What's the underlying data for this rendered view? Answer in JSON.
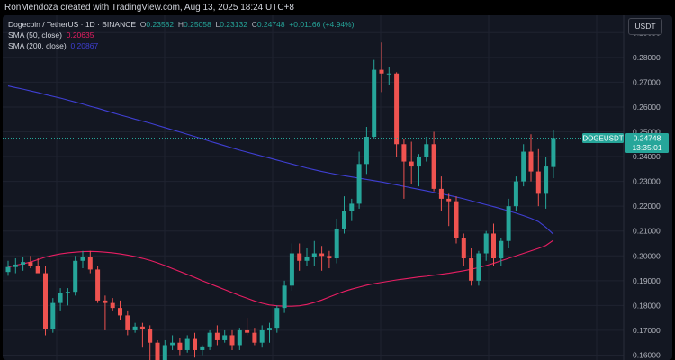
{
  "header": {
    "attribution": "RonMendoza created with TradingView.com, Aug 13, 2025 18:24 UTC+8"
  },
  "legend": {
    "symbol_line": "Dogecoin / TetherUS · 1D · BINANCE",
    "o_label": "O",
    "o_value": "0.23582",
    "h_label": "H",
    "h_value": "0.25058",
    "l_label": "L",
    "l_value": "0.23132",
    "c_label": "C",
    "c_value": "0.24748",
    "change": "+0.01166 (+4.94%)",
    "sma50_label": "SMA (50, close)",
    "sma50_value": "0.20635",
    "sma200_label": "SMA (200, close)",
    "sma200_value": "0.20867"
  },
  "toolbar": {
    "currency_button": "USDT"
  },
  "price_tag": {
    "symbol": "DOGEUSDT",
    "price": "0.24748",
    "countdown": "13:35:01"
  },
  "colors": {
    "up": "#26a69a",
    "down": "#ef5350",
    "sma50": "#e91e63",
    "sma200": "#3f3fd3",
    "background": "#131722",
    "grid": "#1f2330"
  },
  "chart_data": {
    "type": "candlestick",
    "y_axis": {
      "ticks": [
        0.16,
        0.17,
        0.18,
        0.19,
        0.2,
        0.21,
        0.22,
        0.23,
        0.24,
        0.25,
        0.26,
        0.27,
        0.28,
        0.29
      ],
      "tick_labels": [
        "0.16000",
        "0.17000",
        "0.18000",
        "0.19000",
        "0.20000",
        "0.21000",
        "0.22000",
        "0.23000",
        "0.24000",
        "0.25000",
        "0.26000",
        "0.27000",
        "0.28000",
        "0.29000"
      ],
      "range": [
        0.158,
        0.297
      ]
    },
    "grid": true,
    "candles": [
      {
        "o": 0.1935,
        "h": 0.198,
        "l": 0.192,
        "c": 0.1955
      },
      {
        "o": 0.1955,
        "h": 0.199,
        "l": 0.193,
        "c": 0.1965
      },
      {
        "o": 0.1965,
        "h": 0.1995,
        "l": 0.194,
        "c": 0.1975
      },
      {
        "o": 0.1975,
        "h": 0.2,
        "l": 0.195,
        "c": 0.196
      },
      {
        "o": 0.196,
        "h": 0.199,
        "l": 0.194,
        "c": 0.193
      },
      {
        "o": 0.193,
        "h": 0.196,
        "l": 0.168,
        "c": 0.1705
      },
      {
        "o": 0.1705,
        "h": 0.183,
        "l": 0.169,
        "c": 0.181
      },
      {
        "o": 0.181,
        "h": 0.187,
        "l": 0.178,
        "c": 0.185
      },
      {
        "o": 0.185,
        "h": 0.187,
        "l": 0.18,
        "c": 0.1855
      },
      {
        "o": 0.1855,
        "h": 0.2,
        "l": 0.184,
        "c": 0.198
      },
      {
        "o": 0.198,
        "h": 0.202,
        "l": 0.195,
        "c": 0.1995
      },
      {
        "o": 0.1995,
        "h": 0.202,
        "l": 0.193,
        "c": 0.1945
      },
      {
        "o": 0.1945,
        "h": 0.196,
        "l": 0.181,
        "c": 0.182
      },
      {
        "o": 0.182,
        "h": 0.184,
        "l": 0.17,
        "c": 0.181
      },
      {
        "o": 0.181,
        "h": 0.183,
        "l": 0.178,
        "c": 0.179
      },
      {
        "o": 0.179,
        "h": 0.182,
        "l": 0.174,
        "c": 0.176
      },
      {
        "o": 0.176,
        "h": 0.178,
        "l": 0.168,
        "c": 0.17
      },
      {
        "o": 0.17,
        "h": 0.173,
        "l": 0.169,
        "c": 0.1715
      },
      {
        "o": 0.1715,
        "h": 0.173,
        "l": 0.163,
        "c": 0.1705
      },
      {
        "o": 0.1705,
        "h": 0.172,
        "l": 0.158,
        "c": 0.165
      },
      {
        "o": 0.165,
        "h": 0.166,
        "l": 0.152,
        "c": 0.158
      },
      {
        "o": 0.158,
        "h": 0.166,
        "l": 0.155,
        "c": 0.164
      },
      {
        "o": 0.164,
        "h": 0.168,
        "l": 0.162,
        "c": 0.165
      },
      {
        "o": 0.165,
        "h": 0.167,
        "l": 0.16,
        "c": 0.162
      },
      {
        "o": 0.162,
        "h": 0.168,
        "l": 0.161,
        "c": 0.1665
      },
      {
        "o": 0.1665,
        "h": 0.169,
        "l": 0.159,
        "c": 0.162
      },
      {
        "o": 0.162,
        "h": 0.164,
        "l": 0.16,
        "c": 0.1635
      },
      {
        "o": 0.1635,
        "h": 0.17,
        "l": 0.162,
        "c": 0.169
      },
      {
        "o": 0.169,
        "h": 0.172,
        "l": 0.164,
        "c": 0.166
      },
      {
        "o": 0.166,
        "h": 0.17,
        "l": 0.165,
        "c": 0.168
      },
      {
        "o": 0.168,
        "h": 0.17,
        "l": 0.162,
        "c": 0.164
      },
      {
        "o": 0.164,
        "h": 0.171,
        "l": 0.162,
        "c": 0.17
      },
      {
        "o": 0.17,
        "h": 0.175,
        "l": 0.168,
        "c": 0.169
      },
      {
        "o": 0.169,
        "h": 0.171,
        "l": 0.164,
        "c": 0.165
      },
      {
        "o": 0.165,
        "h": 0.172,
        "l": 0.163,
        "c": 0.17
      },
      {
        "o": 0.17,
        "h": 0.173,
        "l": 0.165,
        "c": 0.171
      },
      {
        "o": 0.171,
        "h": 0.18,
        "l": 0.169,
        "c": 0.179
      },
      {
        "o": 0.179,
        "h": 0.19,
        "l": 0.177,
        "c": 0.188
      },
      {
        "o": 0.188,
        "h": 0.205,
        "l": 0.186,
        "c": 0.201
      },
      {
        "o": 0.201,
        "h": 0.205,
        "l": 0.194,
        "c": 0.198
      },
      {
        "o": 0.198,
        "h": 0.203,
        "l": 0.196,
        "c": 0.1995
      },
      {
        "o": 0.1995,
        "h": 0.206,
        "l": 0.196,
        "c": 0.201
      },
      {
        "o": 0.201,
        "h": 0.204,
        "l": 0.194,
        "c": 0.2
      },
      {
        "o": 0.2,
        "h": 0.202,
        "l": 0.195,
        "c": 0.199
      },
      {
        "o": 0.199,
        "h": 0.215,
        "l": 0.197,
        "c": 0.211
      },
      {
        "o": 0.211,
        "h": 0.224,
        "l": 0.209,
        "c": 0.218
      },
      {
        "o": 0.218,
        "h": 0.223,
        "l": 0.214,
        "c": 0.221
      },
      {
        "o": 0.221,
        "h": 0.242,
        "l": 0.219,
        "c": 0.237
      },
      {
        "o": 0.237,
        "h": 0.252,
        "l": 0.233,
        "c": 0.248
      },
      {
        "o": 0.248,
        "h": 0.279,
        "l": 0.247,
        "c": 0.275
      },
      {
        "o": 0.275,
        "h": 0.286,
        "l": 0.266,
        "c": 0.2735
      },
      {
        "o": 0.2735,
        "h": 0.276,
        "l": 0.269,
        "c": 0.2735
      },
      {
        "o": 0.2735,
        "h": 0.274,
        "l": 0.24,
        "c": 0.245
      },
      {
        "o": 0.245,
        "h": 0.247,
        "l": 0.223,
        "c": 0.238
      },
      {
        "o": 0.238,
        "h": 0.246,
        "l": 0.229,
        "c": 0.236
      },
      {
        "o": 0.236,
        "h": 0.241,
        "l": 0.228,
        "c": 0.24
      },
      {
        "o": 0.24,
        "h": 0.248,
        "l": 0.238,
        "c": 0.245
      },
      {
        "o": 0.245,
        "h": 0.25,
        "l": 0.226,
        "c": 0.227
      },
      {
        "o": 0.227,
        "h": 0.232,
        "l": 0.218,
        "c": 0.223
      },
      {
        "o": 0.223,
        "h": 0.225,
        "l": 0.212,
        "c": 0.222
      },
      {
        "o": 0.222,
        "h": 0.224,
        "l": 0.205,
        "c": 0.207
      },
      {
        "o": 0.207,
        "h": 0.209,
        "l": 0.196,
        "c": 0.199
      },
      {
        "o": 0.199,
        "h": 0.203,
        "l": 0.188,
        "c": 0.19
      },
      {
        "o": 0.19,
        "h": 0.202,
        "l": 0.188,
        "c": 0.201
      },
      {
        "o": 0.201,
        "h": 0.21,
        "l": 0.198,
        "c": 0.209
      },
      {
        "o": 0.209,
        "h": 0.213,
        "l": 0.196,
        "c": 0.199
      },
      {
        "o": 0.199,
        "h": 0.207,
        "l": 0.196,
        "c": 0.206
      },
      {
        "o": 0.206,
        "h": 0.223,
        "l": 0.203,
        "c": 0.22
      },
      {
        "o": 0.22,
        "h": 0.232,
        "l": 0.218,
        "c": 0.23
      },
      {
        "o": 0.23,
        "h": 0.245,
        "l": 0.228,
        "c": 0.242
      },
      {
        "o": 0.242,
        "h": 0.249,
        "l": 0.23,
        "c": 0.234
      },
      {
        "o": 0.234,
        "h": 0.243,
        "l": 0.22,
        "c": 0.225
      },
      {
        "o": 0.225,
        "h": 0.24,
        "l": 0.219,
        "c": 0.236
      },
      {
        "o": 0.2358,
        "h": 0.2506,
        "l": 0.2313,
        "c": 0.2475
      }
    ],
    "sma50": [
      0.1955,
      0.1962,
      0.1968,
      0.1975,
      0.1985,
      0.1995,
      0.2002,
      0.2008,
      0.2012,
      0.2015,
      0.2017,
      0.2018,
      0.2017,
      0.2015,
      0.2012,
      0.2008,
      0.2003,
      0.1997,
      0.199,
      0.1982,
      0.1972,
      0.1961,
      0.1949,
      0.1937,
      0.1925,
      0.1913,
      0.19,
      0.1888,
      0.1876,
      0.1864,
      0.1852,
      0.184,
      0.1829,
      0.1818,
      0.1809,
      0.1802,
      0.1799,
      0.1797,
      0.1797,
      0.1799,
      0.1804,
      0.1812,
      0.1822,
      0.1834,
      0.1846,
      0.1857,
      0.1866,
      0.1874,
      0.1882,
      0.1888,
      0.1893,
      0.1898,
      0.1903,
      0.1907,
      0.1911,
      0.1915,
      0.1918,
      0.1922,
      0.1926,
      0.193,
      0.1935,
      0.194,
      0.1946,
      0.1953,
      0.1961,
      0.197,
      0.198,
      0.199,
      0.2,
      0.201,
      0.202,
      0.203,
      0.2042,
      0.2063
    ],
    "sma200": [
      0.2685,
      0.2678,
      0.2672,
      0.2665,
      0.2658,
      0.265,
      0.2643,
      0.2636,
      0.2628,
      0.262,
      0.2612,
      0.2603,
      0.2595,
      0.2586,
      0.2577,
      0.2568,
      0.256,
      0.2551,
      0.2543,
      0.2535,
      0.2526,
      0.2517,
      0.2508,
      0.2499,
      0.249,
      0.2481,
      0.2472,
      0.2462,
      0.2453,
      0.2444,
      0.2435,
      0.2426,
      0.2418,
      0.241,
      0.2402,
      0.2394,
      0.2386,
      0.2378,
      0.237,
      0.2362,
      0.2354,
      0.2347,
      0.234,
      0.2334,
      0.2328,
      0.2323,
      0.2318,
      0.2313,
      0.2308,
      0.2303,
      0.2298,
      0.2292,
      0.2286,
      0.228,
      0.2274,
      0.2268,
      0.2262,
      0.2256,
      0.225,
      0.2244,
      0.2237,
      0.223,
      0.2222,
      0.2214,
      0.2206,
      0.2198,
      0.219,
      0.2181,
      0.2172,
      0.2162,
      0.2151,
      0.2138,
      0.2115,
      0.2087
    ],
    "last_price": 0.24748
  }
}
